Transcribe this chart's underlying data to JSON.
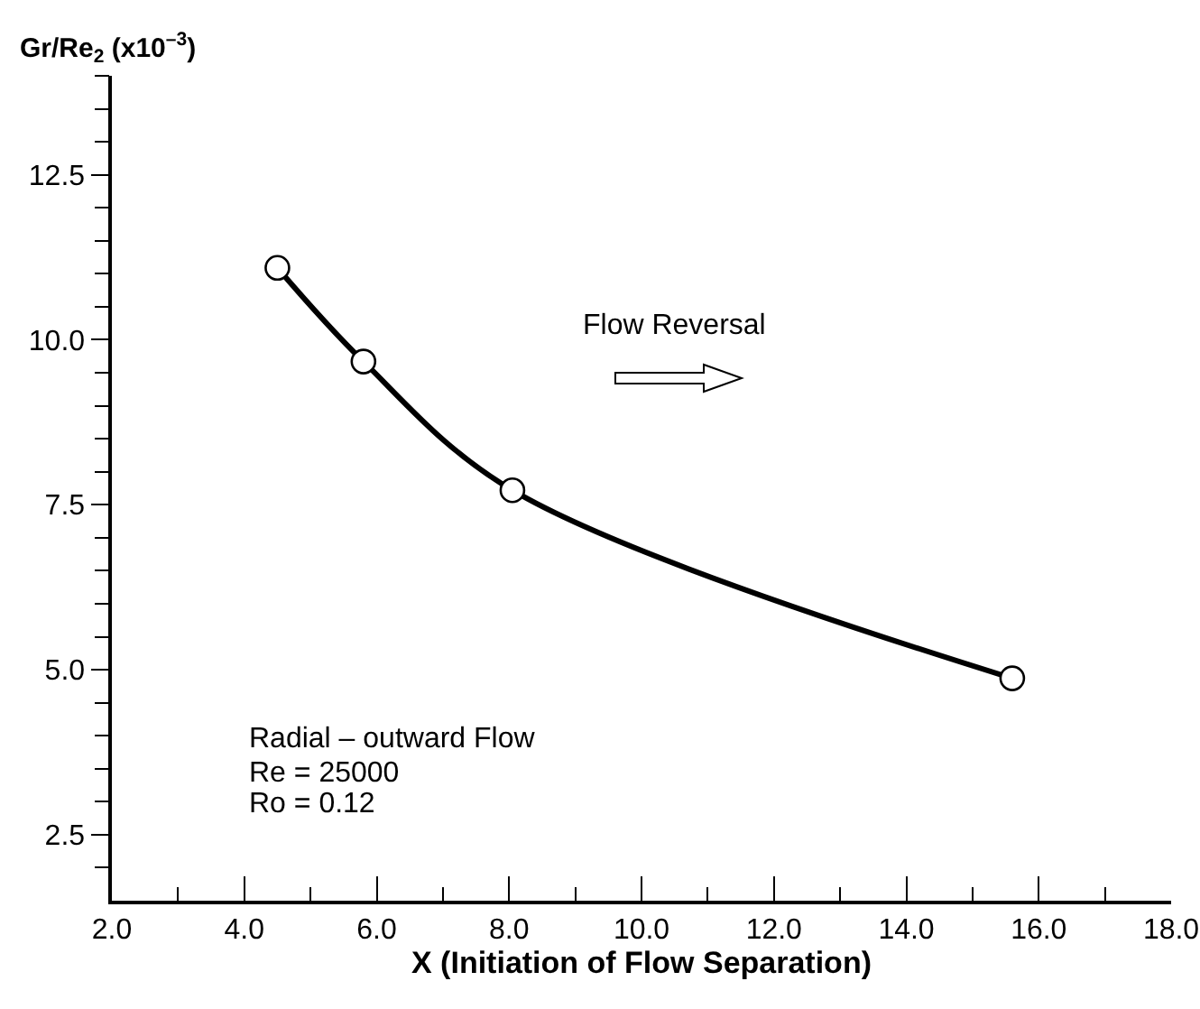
{
  "chart_data": {
    "type": "line",
    "xlabel": "X (Initiation of Flow Separation)",
    "ylabel": "Gr/Re$_{2}$ (x10$^{–3}$)",
    "x": [
      4.5,
      5.8,
      8.05,
      15.6
    ],
    "series": [
      {
        "color": "#000000",
        "values": [
          11.09,
          9.67,
          7.72,
          4.87
        ]
      }
    ],
    "xlim": [
      2,
      18
    ],
    "xticks": [
      {
        "value": 2,
        "label": "2.0"
      },
      {
        "value": 3,
        "label": null
      },
      {
        "value": 4,
        "label": "4.0"
      },
      {
        "value": 5,
        "label": null
      },
      {
        "value": 6,
        "label": "6.0"
      },
      {
        "value": 7,
        "label": null
      },
      {
        "value": 8,
        "label": "8.0"
      },
      {
        "value": 9,
        "label": null
      },
      {
        "value": 10,
        "label": "10.0"
      },
      {
        "value": 11,
        "label": null
      },
      {
        "value": 12,
        "label": "12.0"
      },
      {
        "value": 13,
        "label": null
      },
      {
        "value": 14,
        "label": "14.0"
      },
      {
        "value": 15,
        "label": null
      },
      {
        "value": 16,
        "label": "16.0"
      },
      {
        "value": 17,
        "label": null
      },
      {
        "value": 18,
        "label": "18.0"
      }
    ],
    "ylim": [
      1.5,
      14
    ],
    "yticks": [
      {
        "value": 2,
        "label": null
      },
      {
        "value": 2.5,
        "label": "2.5"
      },
      {
        "value": 3,
        "label": null
      },
      {
        "value": 3.5,
        "label": null
      },
      {
        "value": 4,
        "label": null
      },
      {
        "value": 4.5,
        "label": null
      },
      {
        "value": 5,
        "label": "5.0"
      },
      {
        "value": 5.5,
        "label": null
      },
      {
        "value": 6,
        "label": null
      },
      {
        "value": 6.5,
        "label": null
      },
      {
        "value": 7,
        "label": null
      },
      {
        "value": 7.5,
        "label": "7.5"
      },
      {
        "value": 8,
        "label": null
      },
      {
        "value": 8.5,
        "label": null
      },
      {
        "value": 9,
        "label": null
      },
      {
        "value": 9.5,
        "label": null
      },
      {
        "value": 10,
        "label": "10.0"
      },
      {
        "value": 10.5,
        "label": null
      },
      {
        "value": 11,
        "label": null
      },
      {
        "value": 11.5,
        "label": null
      },
      {
        "value": 12,
        "label": null
      },
      {
        "value": 12.5,
        "label": "12.5"
      },
      {
        "value": 13,
        "label": null
      },
      {
        "value": 13.5,
        "label": null
      },
      {
        "value": 14,
        "label": null
      }
    ],
    "grid": false,
    "marker": "circle",
    "line_style": "solid",
    "annotations": [
      "Flow Reversal",
      "Radial – outward Flow",
      "Re = 25000",
      "Ro = 0.12"
    ]
  }
}
